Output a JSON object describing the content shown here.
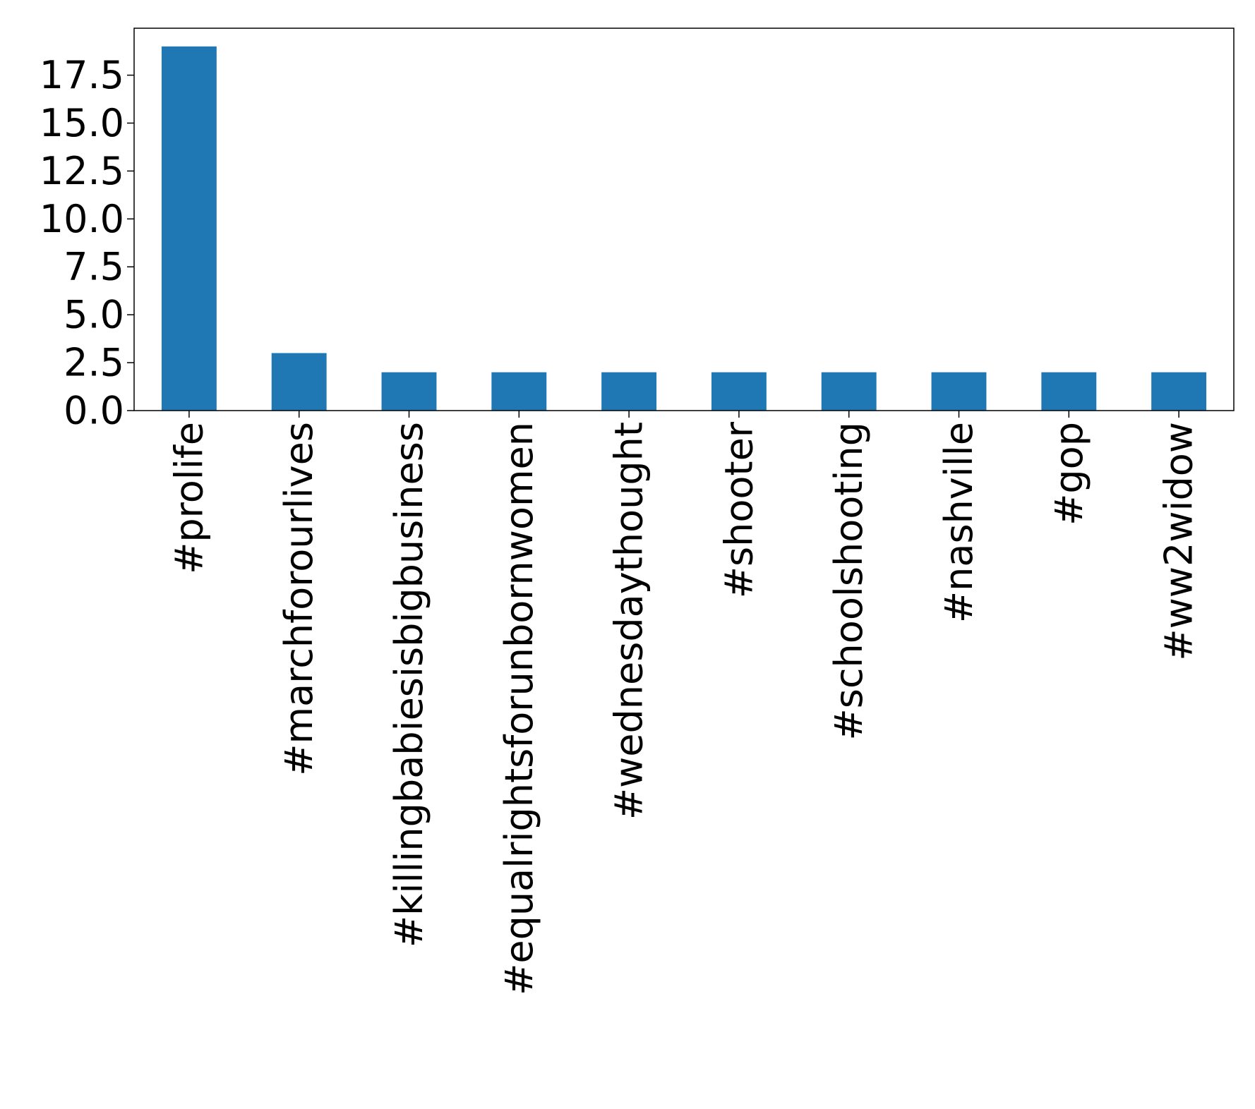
{
  "chart_data": {
    "type": "bar",
    "title": "",
    "xlabel": "",
    "ylabel": "",
    "categories": [
      "#prolife",
      "#marchforourlives",
      "#killingbabiesisbigbusiness",
      "#equalrightsforunbornwomen",
      "#wednesdaythought",
      "#shooter",
      "#schoolshooting",
      "#nashville",
      "#gop",
      "#ww2widow"
    ],
    "values": [
      19,
      3,
      2,
      2,
      2,
      2,
      2,
      2,
      2,
      2
    ],
    "ylim": [
      0,
      19.95
    ],
    "yticks": [
      0.0,
      2.5,
      5.0,
      7.5,
      10.0,
      12.5,
      15.0,
      17.5
    ],
    "ytick_labels": [
      "0.0",
      "2.5",
      "5.0",
      "7.5",
      "10.0",
      "12.5",
      "15.0",
      "17.5"
    ],
    "grid": false,
    "legend": "none",
    "bar_color": "#1f77b4"
  }
}
